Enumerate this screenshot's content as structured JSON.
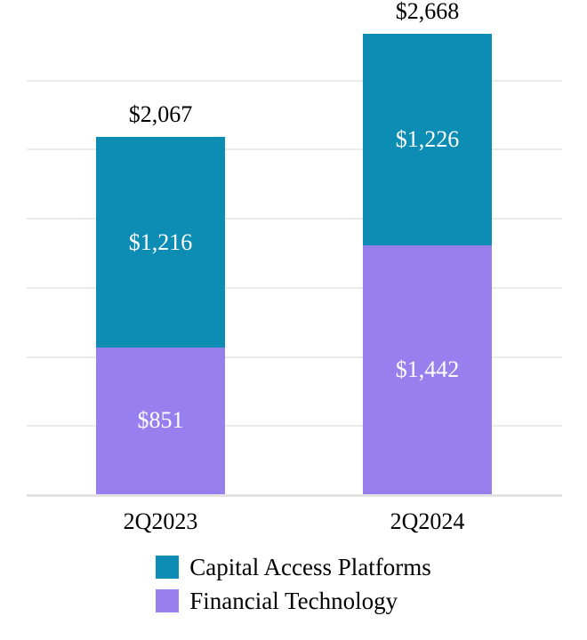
{
  "chart_data": {
    "type": "bar",
    "subtype": "stacked",
    "title": "",
    "xlabel": "",
    "ylabel": "",
    "categories": [
      "2Q2023",
      "2Q2024"
    ],
    "series": [
      {
        "name": "Capital Access Platforms",
        "color": "#0d8cb4",
        "values": [
          1216,
          1226
        ],
        "labels": [
          "$1,216",
          "$1,226"
        ]
      },
      {
        "name": "Financial Technology",
        "color": "#977fee",
        "values": [
          851,
          1442
        ],
        "labels": [
          "$851",
          "$1,442"
        ]
      }
    ],
    "totals": [
      2067,
      2668
    ],
    "total_labels": [
      "$2,067",
      "$2,668"
    ],
    "ylim": [
      0,
      2800
    ],
    "gridline_values": [
      400,
      800,
      1200,
      1600,
      2000,
      2400
    ],
    "grid": true,
    "legend_position": "bottom",
    "value_label_color": "#ffffff",
    "total_label_color": "#000000",
    "gridline_color": "#ebebeb",
    "axis_line_color": "#e2e2e2",
    "background_color": "#ffffff"
  }
}
